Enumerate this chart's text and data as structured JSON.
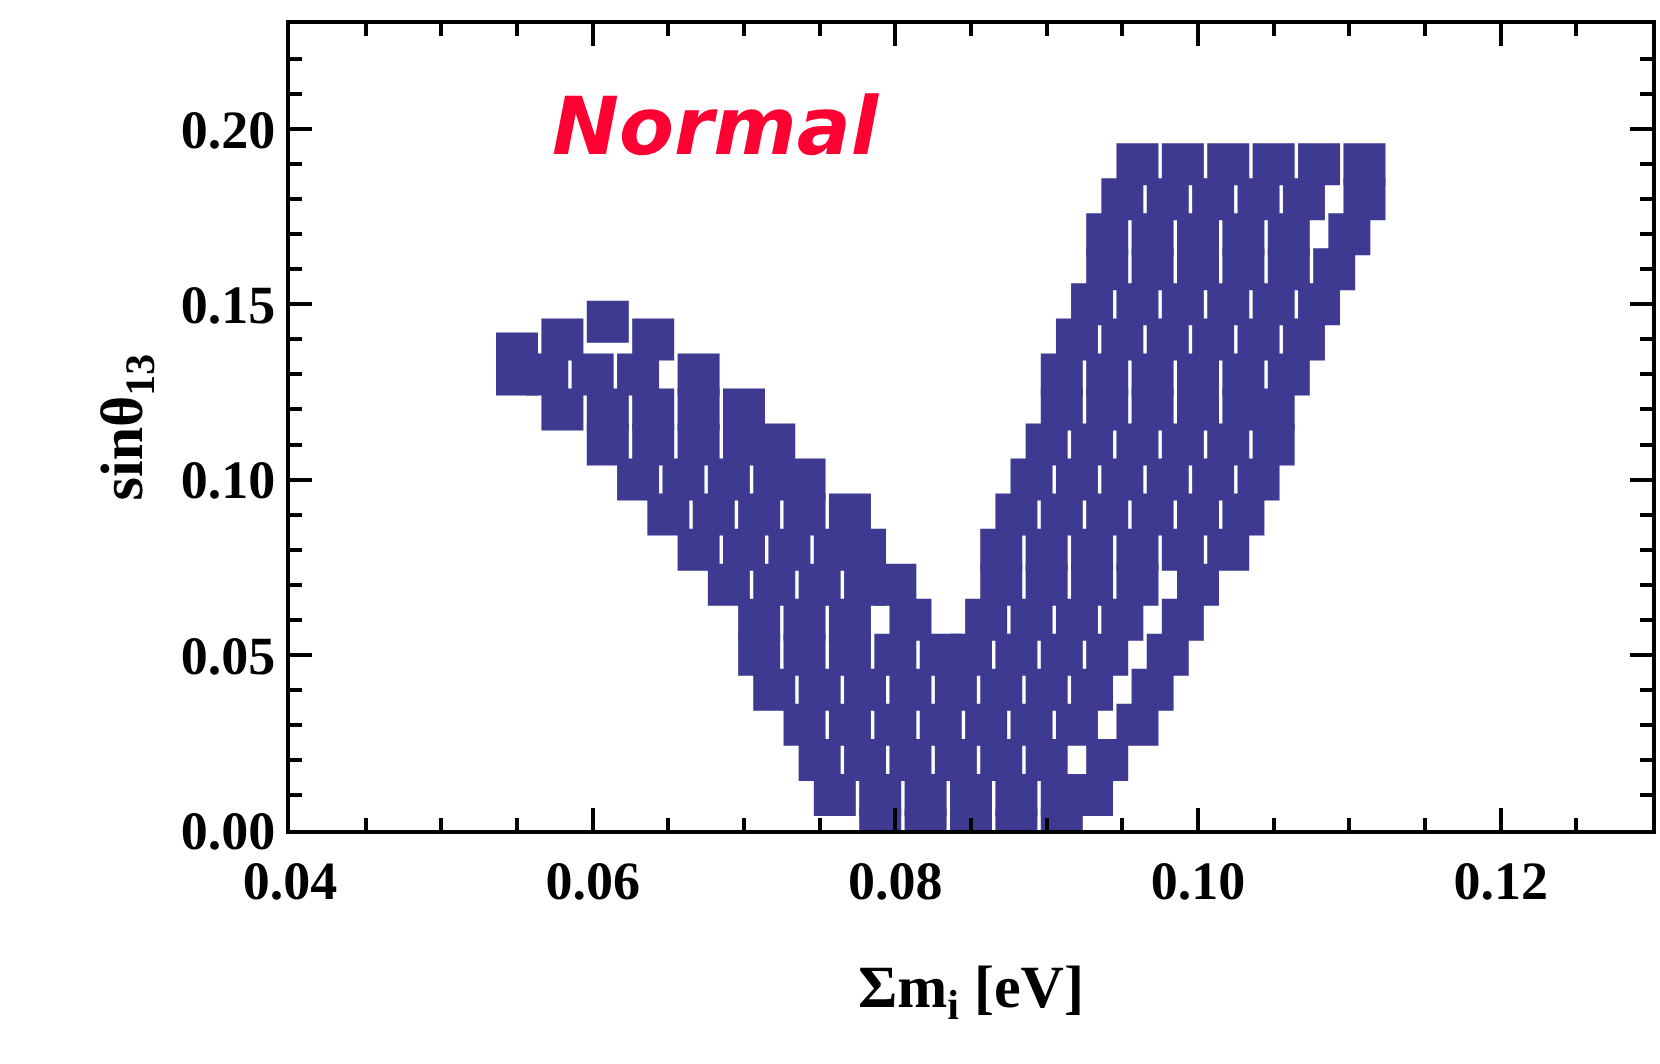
{
  "chart_data": {
    "type": "scatter",
    "xlabel": "Σm$_{i}$ [eV]",
    "ylabel": "sinθ$_{13}$",
    "annotations": [
      "Normal"
    ],
    "xlim": [
      0.04,
      0.13
    ],
    "ylim": [
      0,
      0.23
    ],
    "xticks": [
      0.04,
      {
        "value": 0.045,
        "label": null
      },
      0.06,
      {
        "value": 0.055,
        "label": null
      },
      {
        "value": 0.05,
        "label": null
      },
      {
        "value": 0.065,
        "label": null
      },
      {
        "value": 0.07,
        "label": null
      },
      {
        "value": 0.075,
        "label": null
      },
      0.08,
      {
        "value": 0.085,
        "label": null
      },
      {
        "value": 0.09,
        "label": null
      },
      {
        "value": 0.095,
        "label": null
      },
      {
        "value": 0.1,
        "label": "0.10"
      },
      {
        "value": 0.105,
        "label": null
      },
      {
        "value": 0.11,
        "label": null
      },
      {
        "value": 0.115,
        "label": null
      },
      0.12,
      {
        "value": 0.125,
        "label": null
      }
    ],
    "yticks": [
      {
        "value": 0,
        "label": "0.00"
      },
      {
        "value": 0.01,
        "label": null
      },
      {
        "value": 0.02,
        "label": null
      },
      {
        "value": 0.03,
        "label": null
      },
      {
        "value": 0.04,
        "label": null
      },
      0.05,
      {
        "value": 0.06,
        "label": null
      },
      {
        "value": 0.07,
        "label": null
      },
      {
        "value": 0.08,
        "label": null
      },
      {
        "value": 0.09,
        "label": null
      },
      {
        "value": 0.1,
        "label": "0.10"
      },
      {
        "value": 0.11,
        "label": null
      },
      {
        "value": 0.12,
        "label": null
      },
      {
        "value": 0.13,
        "label": null
      },
      {
        "value": 0.14,
        "label": null
      },
      0.15,
      {
        "value": 0.16,
        "label": null
      },
      {
        "value": 0.17,
        "label": null
      },
      {
        "value": 0.18,
        "label": null
      },
      {
        "value": 0.19,
        "label": null
      },
      {
        "value": 0.2,
        "label": "0.20"
      },
      {
        "value": 0.21,
        "label": null
      },
      {
        "value": 0.22,
        "label": null
      }
    ],
    "marker": "square",
    "series": [
      {
        "color": "#3e3a92",
        "x": [
          0.079,
          0.082,
          0.085,
          0.088,
          0.091
        ],
        "values": [
          0,
          0,
          0,
          0,
          0
        ]
      },
      {
        "color": "#3e3a92",
        "x": [
          0.076,
          0.079,
          0.082,
          0.085,
          0.088,
          0.091,
          0.093
        ],
        "values": [
          0.01,
          0.01,
          0.01,
          0.01,
          0.01,
          0.01,
          0.01
        ]
      },
      {
        "color": "#3e3a92",
        "x": [
          0.075,
          0.078,
          0.081,
          0.084,
          0.087,
          0.09,
          0.094
        ],
        "values": [
          0.02,
          0.02,
          0.02,
          0.02,
          0.02,
          0.02,
          0.02
        ]
      },
      {
        "color": "#3e3a92",
        "x": [
          0.074,
          0.077,
          0.08,
          0.083,
          0.086,
          0.089,
          0.092,
          0.096
        ],
        "values": [
          0.03,
          0.03,
          0.03,
          0.03,
          0.03,
          0.03,
          0.03,
          0.03
        ]
      },
      {
        "color": "#3e3a92",
        "x": [
          0.072,
          0.075,
          0.078,
          0.081,
          0.084,
          0.087,
          0.09,
          0.093,
          0.097
        ],
        "values": [
          0.04,
          0.04,
          0.04,
          0.04,
          0.04,
          0.04,
          0.04,
          0.04,
          0.04
        ]
      },
      {
        "color": "#3e3a92",
        "x": [
          0.071,
          0.074,
          0.077,
          0.08,
          0.083,
          0.085,
          0.088,
          0.091,
          0.094,
          0.098
        ],
        "values": [
          0.05,
          0.05,
          0.05,
          0.05,
          0.05,
          0.05,
          0.05,
          0.05,
          0.05,
          0.05
        ]
      },
      {
        "color": "#3e3a92",
        "x": [
          0.071,
          0.074,
          0.077,
          0.081,
          0.086,
          0.089,
          0.092,
          0.095,
          0.099
        ],
        "values": [
          0.06,
          0.06,
          0.06,
          0.06,
          0.06,
          0.06,
          0.06,
          0.06,
          0.06
        ]
      },
      {
        "color": "#3e3a92",
        "x": [
          0.069,
          0.072,
          0.075,
          0.078,
          0.08,
          0.087,
          0.09,
          0.093,
          0.096,
          0.1
        ],
        "values": [
          0.07,
          0.07,
          0.07,
          0.07,
          0.07,
          0.07,
          0.07,
          0.07,
          0.07,
          0.07
        ]
      },
      {
        "color": "#3e3a92",
        "x": [
          0.067,
          0.07,
          0.073,
          0.076,
          0.078,
          0.087,
          0.09,
          0.093,
          0.096,
          0.099,
          0.102
        ],
        "values": [
          0.08,
          0.08,
          0.08,
          0.08,
          0.08,
          0.08,
          0.08,
          0.08,
          0.08,
          0.08,
          0.08
        ]
      },
      {
        "color": "#3e3a92",
        "x": [
          0.065,
          0.068,
          0.071,
          0.074,
          0.077,
          0.088,
          0.091,
          0.094,
          0.097,
          0.1,
          0.103
        ],
        "values": [
          0.09,
          0.09,
          0.09,
          0.09,
          0.09,
          0.09,
          0.09,
          0.09,
          0.09,
          0.09,
          0.09
        ]
      },
      {
        "color": "#3e3a92",
        "x": [
          0.063,
          0.066,
          0.069,
          0.072,
          0.074,
          0.089,
          0.092,
          0.095,
          0.098,
          0.101,
          0.104
        ],
        "values": [
          0.1,
          0.1,
          0.1,
          0.1,
          0.1,
          0.1,
          0.1,
          0.1,
          0.1,
          0.1,
          0.1
        ]
      },
      {
        "color": "#3e3a92",
        "x": [
          0.061,
          0.064,
          0.067,
          0.07,
          0.072,
          0.09,
          0.093,
          0.096,
          0.099,
          0.102,
          0.105
        ],
        "values": [
          0.11,
          0.11,
          0.11,
          0.11,
          0.11,
          0.11,
          0.11,
          0.11,
          0.11,
          0.11,
          0.11
        ]
      },
      {
        "color": "#3e3a92",
        "x": [
          0.058,
          0.061,
          0.064,
          0.067,
          0.07,
          0.091,
          0.094,
          0.097,
          0.1,
          0.103,
          0.105
        ],
        "values": [
          0.12,
          0.12,
          0.12,
          0.12,
          0.12,
          0.12,
          0.12,
          0.12,
          0.12,
          0.12,
          0.12
        ]
      },
      {
        "color": "#3e3a92",
        "x": [
          0.055,
          0.057,
          0.06,
          0.063,
          0.067,
          0.091,
          0.094,
          0.097,
          0.1,
          0.103,
          0.106
        ],
        "values": [
          0.13,
          0.13,
          0.13,
          0.13,
          0.13,
          0.13,
          0.13,
          0.13,
          0.13,
          0.13,
          0.13
        ]
      },
      {
        "color": "#3e3a92",
        "x": [
          0.055,
          0.058,
          0.061,
          0.064,
          0.092,
          0.095,
          0.098,
          0.101,
          0.104,
          0.107
        ],
        "values": [
          0.136,
          0.14,
          0.145,
          0.14,
          0.14,
          0.14,
          0.14,
          0.14,
          0.14,
          0.14
        ]
      },
      {
        "color": "#3e3a92",
        "x": [
          0.093,
          0.096,
          0.099,
          0.102,
          0.105,
          0.108
        ],
        "values": [
          0.15,
          0.15,
          0.15,
          0.15,
          0.15,
          0.15
        ]
      },
      {
        "color": "#3e3a92",
        "x": [
          0.094,
          0.097,
          0.1,
          0.103,
          0.106,
          0.109
        ],
        "values": [
          0.16,
          0.16,
          0.16,
          0.16,
          0.16,
          0.16
        ]
      },
      {
        "color": "#3e3a92",
        "x": [
          0.094,
          0.097,
          0.1,
          0.103,
          0.106,
          0.11
        ],
        "values": [
          0.17,
          0.17,
          0.17,
          0.17,
          0.17,
          0.17
        ]
      },
      {
        "color": "#3e3a92",
        "x": [
          0.095,
          0.098,
          0.101,
          0.104,
          0.107,
          0.111
        ],
        "values": [
          0.18,
          0.18,
          0.18,
          0.18,
          0.18,
          0.18
        ]
      },
      {
        "color": "#3e3a92",
        "x": [
          0.096,
          0.099,
          0.102,
          0.105,
          0.108,
          0.111
        ],
        "values": [
          0.19,
          0.19,
          0.19,
          0.19,
          0.19,
          0.19
        ]
      }
    ]
  }
}
